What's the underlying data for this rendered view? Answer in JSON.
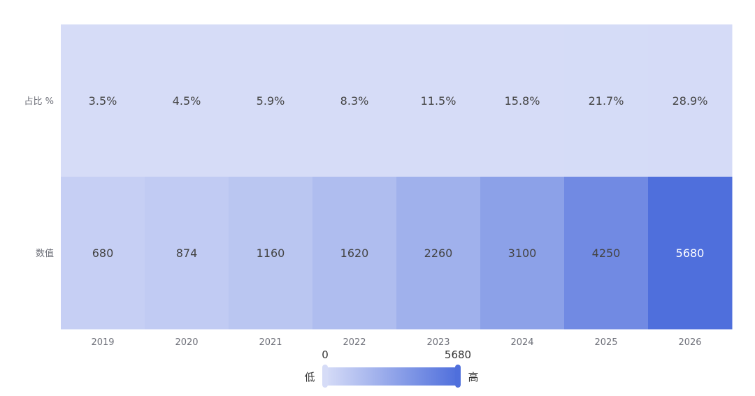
{
  "chart_data": {
    "type": "heatmap",
    "x_categories": [
      "2019",
      "2020",
      "2021",
      "2022",
      "2023",
      "2024",
      "2025",
      "2026"
    ],
    "y_categories": [
      "占比 %",
      "数值"
    ],
    "cells": [
      {
        "row": 0,
        "col": 0,
        "value": 3.5,
        "label": "3.5%"
      },
      {
        "row": 0,
        "col": 1,
        "value": 4.5,
        "label": "4.5%"
      },
      {
        "row": 0,
        "col": 2,
        "value": 5.9,
        "label": "5.9%"
      },
      {
        "row": 0,
        "col": 3,
        "value": 8.3,
        "label": "8.3%"
      },
      {
        "row": 0,
        "col": 4,
        "value": 11.5,
        "label": "11.5%"
      },
      {
        "row": 0,
        "col": 5,
        "value": 15.8,
        "label": "15.8%"
      },
      {
        "row": 0,
        "col": 6,
        "value": 21.7,
        "label": "21.7%"
      },
      {
        "row": 0,
        "col": 7,
        "value": 28.9,
        "label": "28.9%"
      },
      {
        "row": 1,
        "col": 0,
        "value": 680,
        "label": "680"
      },
      {
        "row": 1,
        "col": 1,
        "value": 874,
        "label": "874"
      },
      {
        "row": 1,
        "col": 2,
        "value": 1160,
        "label": "1160"
      },
      {
        "row": 1,
        "col": 3,
        "value": 1620,
        "label": "1620"
      },
      {
        "row": 1,
        "col": 4,
        "value": 2260,
        "label": "2260"
      },
      {
        "row": 1,
        "col": 5,
        "value": 3100,
        "label": "3100"
      },
      {
        "row": 1,
        "col": 6,
        "value": 4250,
        "label": "4250"
      },
      {
        "row": 1,
        "col": 7,
        "value": 5680,
        "label": "5680"
      }
    ],
    "visual_map": {
      "min": 0,
      "max": 5680,
      "min_label": "0",
      "max_label": "5680",
      "low_text": "低",
      "high_text": "高",
      "color_low": "#d6dcf7",
      "color_high": "#4f6fdc"
    },
    "grid": false,
    "legend_position": "bottom-center"
  },
  "colors": {
    "axis_label": "#6e7079",
    "cell_text_dark": "#444444",
    "cell_text_light": "#ffffff",
    "visualmap_text": "#333333"
  }
}
